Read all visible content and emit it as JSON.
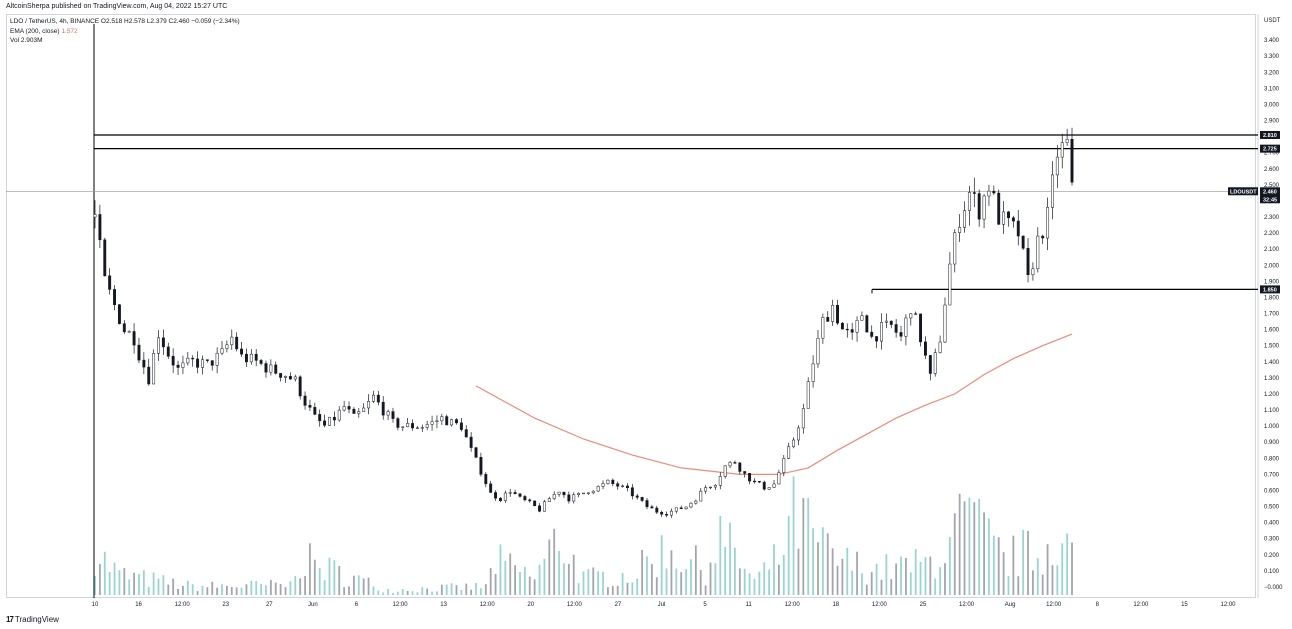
{
  "header": {
    "title": "AltcoinSherpa published on TradingView.com, Aug 04, 2022 15:27 UTC"
  },
  "legend": {
    "symbol": "LDO / TetherUS, 4h, BINANCE",
    "ohlc": "O2.518  H2.578  L2.379  C2.460  −0.059 (−2.34%)",
    "ema_label": "EMA (200, close)",
    "ema_value": "1.572",
    "vol_label": "Vol",
    "vol_value": "2.903M"
  },
  "footer": {
    "logo_text": "TradingView"
  },
  "chart_data": {
    "type": "candlestick",
    "symbol": "LDOUSDT",
    "currency_label": "USDT",
    "y_ticks": [
      "3.400",
      "3.300",
      "3.200",
      "3.100",
      "3.000",
      "2.900",
      "2.800",
      "2.700",
      "2.600",
      "2.500",
      "2.400",
      "2.300",
      "2.200",
      "2.100",
      "2.000",
      "1.900",
      "1.800",
      "1.700",
      "1.600",
      "1.500",
      "1.400",
      "1.300",
      "1.200",
      "1.100",
      "1.000",
      "0.900",
      "0.800",
      "0.700",
      "0.600",
      "0.500",
      "0.400",
      "0.300",
      "0.200",
      "0.100",
      "−0.000"
    ],
    "ylim": [
      -0.05,
      3.5
    ],
    "x_ticks": [
      "10",
      "16",
      "12:00",
      "23",
      "27",
      "Jun",
      "6",
      "12:00",
      "13",
      "12:00",
      "20",
      "12:00",
      "27",
      "Jul",
      "5",
      "11",
      "12:00",
      "18",
      "12:00",
      "25",
      "12:00",
      "Aug",
      "12:00",
      "8",
      "12:00",
      "15",
      "12:00"
    ],
    "horizontal_lines": [
      {
        "value": 2.81,
        "label": "2.810"
      },
      {
        "value": 2.725,
        "label": "2.725"
      },
      {
        "value": 1.85,
        "label": "1.850"
      }
    ],
    "current_price": {
      "value": 2.46,
      "label": "2.460",
      "symbol_label": "LDOUSDT",
      "countdown": "32:45"
    },
    "price_path": [
      [
        0,
        2.3
      ],
      [
        2,
        1.9
      ],
      [
        4,
        1.75
      ],
      [
        6,
        1.6
      ],
      [
        8,
        1.55
      ],
      [
        9,
        1.45
      ],
      [
        11,
        1.3
      ],
      [
        13,
        1.58
      ],
      [
        15,
        1.45
      ],
      [
        17,
        1.35
      ],
      [
        20,
        1.4
      ],
      [
        23,
        1.38
      ],
      [
        26,
        1.45
      ],
      [
        28,
        1.55
      ],
      [
        30,
        1.43
      ],
      [
        33,
        1.4
      ],
      [
        36,
        1.35
      ],
      [
        39,
        1.32
      ],
      [
        41,
        1.28
      ],
      [
        43,
        1.15
      ],
      [
        45,
        1.05
      ],
      [
        47,
        1.0
      ],
      [
        49,
        1.05
      ],
      [
        51,
        1.12
      ],
      [
        53,
        1.05
      ],
      [
        55,
        1.1
      ],
      [
        57,
        1.18
      ],
      [
        59,
        1.1
      ],
      [
        61,
        1.02
      ],
      [
        63,
        1.0
      ],
      [
        65,
        1.0
      ],
      [
        67,
        1.0
      ],
      [
        69,
        1.02
      ],
      [
        71,
        1.05
      ],
      [
        73,
        1.02
      ],
      [
        75,
        1.0
      ],
      [
        77,
        0.85
      ],
      [
        79,
        0.72
      ],
      [
        81,
        0.58
      ],
      [
        83,
        0.55
      ],
      [
        85,
        0.6
      ],
      [
        87,
        0.55
      ],
      [
        89,
        0.52
      ],
      [
        91,
        0.48
      ],
      [
        93,
        0.55
      ],
      [
        95,
        0.6
      ],
      [
        97,
        0.55
      ],
      [
        99,
        0.57
      ],
      [
        101,
        0.6
      ],
      [
        103,
        0.62
      ],
      [
        105,
        0.65
      ],
      [
        107,
        0.63
      ],
      [
        109,
        0.6
      ],
      [
        111,
        0.55
      ],
      [
        113,
        0.5
      ],
      [
        115,
        0.47
      ],
      [
        117,
        0.46
      ],
      [
        119,
        0.48
      ],
      [
        121,
        0.5
      ],
      [
        123,
        0.55
      ],
      [
        125,
        0.62
      ],
      [
        127,
        0.65
      ],
      [
        129,
        0.75
      ],
      [
        131,
        0.78
      ],
      [
        133,
        0.7
      ],
      [
        135,
        0.65
      ],
      [
        137,
        0.62
      ],
      [
        139,
        0.64
      ],
      [
        141,
        0.78
      ],
      [
        143,
        0.92
      ],
      [
        145,
        1.1
      ],
      [
        147,
        1.4
      ],
      [
        149,
        1.65
      ],
      [
        151,
        1.75
      ],
      [
        153,
        1.6
      ],
      [
        155,
        1.55
      ],
      [
        157,
        1.7
      ],
      [
        159,
        1.55
      ],
      [
        161,
        1.6
      ],
      [
        163,
        1.62
      ],
      [
        165,
        1.55
      ],
      [
        167,
        1.75
      ],
      [
        169,
        1.55
      ],
      [
        171,
        1.3
      ],
      [
        173,
        1.55
      ],
      [
        175,
        2.0
      ],
      [
        177,
        2.3
      ],
      [
        179,
        2.45
      ],
      [
        181,
        2.35
      ],
      [
        183,
        2.5
      ],
      [
        185,
        2.3
      ],
      [
        187,
        2.25
      ],
      [
        189,
        2.2
      ],
      [
        191,
        1.9
      ],
      [
        193,
        2.15
      ],
      [
        195,
        2.3
      ],
      [
        197,
        2.7
      ],
      [
        199,
        2.75
      ],
      [
        200,
        2.46
      ]
    ],
    "ema_path": [
      [
        78,
        1.25
      ],
      [
        90,
        1.05
      ],
      [
        100,
        0.92
      ],
      [
        110,
        0.82
      ],
      [
        120,
        0.74
      ],
      [
        132,
        0.7
      ],
      [
        140,
        0.7
      ],
      [
        146,
        0.74
      ],
      [
        152,
        0.85
      ],
      [
        158,
        0.95
      ],
      [
        164,
        1.05
      ],
      [
        170,
        1.13
      ],
      [
        176,
        1.2
      ],
      [
        182,
        1.32
      ],
      [
        188,
        1.42
      ],
      [
        194,
        1.5
      ],
      [
        200,
        1.572
      ]
    ],
    "volume_path": [
      [
        0,
        0.3
      ],
      [
        2,
        0.2
      ],
      [
        5,
        0.12
      ],
      [
        20,
        0.05
      ],
      [
        40,
        0.06
      ],
      [
        41,
        0.22
      ],
      [
        60,
        0.03
      ],
      [
        80,
        0.05
      ],
      [
        82,
        0.2
      ],
      [
        90,
        0.1
      ],
      [
        95,
        0.35
      ],
      [
        100,
        0.1
      ],
      [
        110,
        0.12
      ],
      [
        117,
        0.28
      ],
      [
        125,
        0.15
      ],
      [
        128,
        0.35
      ],
      [
        135,
        0.08
      ],
      [
        140,
        0.22
      ],
      [
        143,
        0.45
      ],
      [
        145,
        0.42
      ],
      [
        148,
        0.3
      ],
      [
        152,
        0.2
      ],
      [
        160,
        0.15
      ],
      [
        170,
        0.18
      ],
      [
        175,
        0.3
      ],
      [
        178,
        0.45
      ],
      [
        182,
        0.35
      ],
      [
        186,
        0.2
      ],
      [
        190,
        0.25
      ],
      [
        194,
        0.22
      ],
      [
        196,
        0.4
      ],
      [
        198,
        0.32
      ],
      [
        200,
        0.25
      ]
    ]
  },
  "colors": {
    "candle": "#131722",
    "ema": "#ef8a7a",
    "volume": "#80cbc4",
    "volume_down": "#555d68",
    "line": "#000000",
    "grid_border": "#d1d4dc"
  }
}
